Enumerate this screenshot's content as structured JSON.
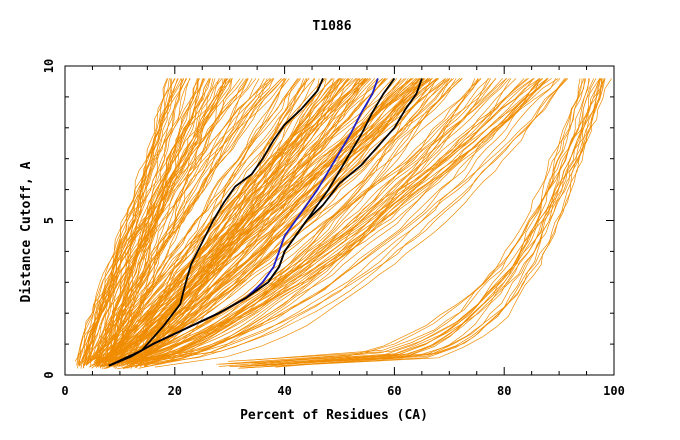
{
  "chart_data": {
    "type": "line",
    "title": "T1086",
    "xlabel": "Percent of Residues (CA)",
    "ylabel": "Distance Cutoff, A",
    "xlim": [
      0,
      100
    ],
    "ylim": [
      0,
      10
    ],
    "xticks": [
      "0",
      "20",
      "40",
      "60",
      "80",
      "100"
    ],
    "yticks": [
      "0",
      "5",
      "10"
    ],
    "grid": false,
    "colors": {
      "models": "#f08c00",
      "highlight_dark": "#000000",
      "highlight_blue": "#1f1fc8"
    },
    "series": [
      {
        "color": "#000000",
        "x": [
          8,
          12,
          16,
          22,
          28,
          33,
          37,
          39,
          40,
          42,
          44,
          46,
          48,
          50,
          52,
          54,
          56,
          58,
          60
        ],
        "y": [
          0.3,
          0.6,
          1.0,
          1.5,
          2.0,
          2.5,
          3.0,
          3.5,
          4.0,
          4.5,
          5.0,
          5.5,
          6.0,
          6.6,
          7.2,
          7.8,
          8.5,
          9.1,
          9.6
        ]
      },
      {
        "color": "#1f1fc8",
        "x": [
          8,
          12,
          16,
          22,
          28,
          33,
          36,
          38,
          39,
          40,
          42,
          44,
          46,
          48,
          50,
          52,
          54,
          56,
          57
        ],
        "y": [
          0.3,
          0.6,
          1.0,
          1.5,
          2.0,
          2.5,
          3.0,
          3.5,
          4.0,
          4.5,
          5.0,
          5.5,
          6.0,
          6.6,
          7.2,
          7.8,
          8.5,
          9.1,
          9.6
        ]
      },
      {
        "color": "#000000",
        "x": [
          8,
          12,
          16,
          22,
          28,
          33,
          37,
          39,
          40,
          42,
          44,
          47,
          50,
          54,
          57,
          60,
          62,
          64,
          65
        ],
        "y": [
          0.3,
          0.6,
          1.0,
          1.5,
          2.0,
          2.5,
          3.0,
          3.5,
          4.0,
          4.5,
          5.0,
          5.5,
          6.2,
          6.8,
          7.4,
          8.0,
          8.6,
          9.1,
          9.6
        ]
      },
      {
        "color": "#000000",
        "x": [
          8,
          14,
          18,
          21,
          22,
          23,
          25,
          27,
          29,
          31,
          34,
          36,
          38,
          40,
          43,
          46,
          47
        ],
        "y": [
          0.3,
          0.8,
          1.6,
          2.3,
          3.0,
          3.6,
          4.3,
          5.0,
          5.6,
          6.1,
          6.5,
          7.0,
          7.6,
          8.1,
          8.6,
          9.2,
          9.6
        ]
      }
    ]
  }
}
